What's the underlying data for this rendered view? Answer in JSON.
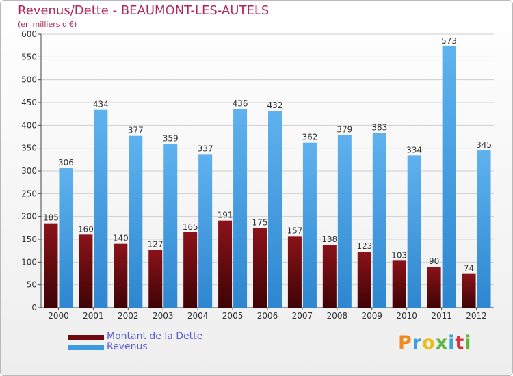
{
  "header": {
    "title": "Revenus/Dette - BEAUMONT-LES-AUTELS",
    "subtitle": "(en milliers d'€)"
  },
  "legend": [
    {
      "label": "Montant de la Dette",
      "color": "#6e0a0f"
    },
    {
      "label": "Revenus",
      "color": "#3f9be0"
    }
  ],
  "logo": {
    "text": "Proxiti"
  },
  "colors": {
    "dette": "#6e0a0f",
    "revenus": "#3f9be0",
    "label": "#333333",
    "grid": "#d0d0d0"
  },
  "chart_data": {
    "type": "bar",
    "title": "Revenus/Dette - BEAUMONT-LES-AUTELS",
    "subtitle": "(en milliers d'€)",
    "xlabel": "",
    "ylabel": "",
    "categories": [
      "2000",
      "2001",
      "2002",
      "2003",
      "2004",
      "2005",
      "2006",
      "2007",
      "2008",
      "2009",
      "2010",
      "2011",
      "2012"
    ],
    "series": [
      {
        "name": "Montant de la Dette",
        "values": [
          185,
          160,
          140,
          127,
          165,
          191,
          175,
          157,
          138,
          123,
          103,
          90,
          74
        ]
      },
      {
        "name": "Revenus",
        "values": [
          306,
          434,
          377,
          359,
          337,
          436,
          432,
          362,
          379,
          383,
          334,
          573,
          345
        ]
      }
    ],
    "ylim": [
      0,
      600
    ],
    "yticks": [
      0,
      50,
      100,
      150,
      200,
      250,
      300,
      350,
      400,
      450,
      500,
      550,
      600
    ],
    "grid": true,
    "legend_position": "bottom-left"
  }
}
